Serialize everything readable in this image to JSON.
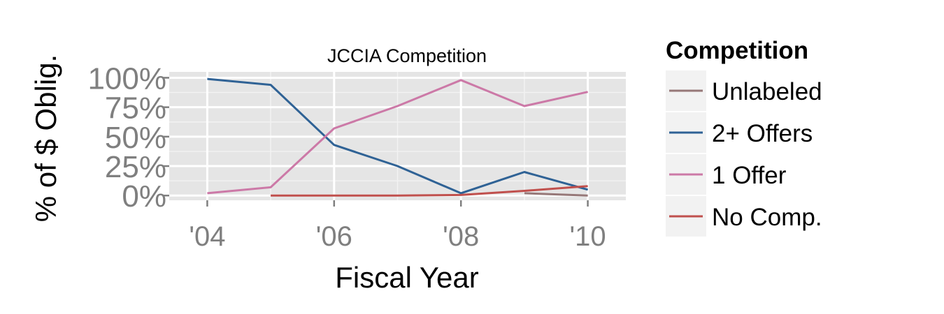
{
  "chart_data": {
    "type": "line",
    "title": "JCCIA Competition",
    "xlabel": "Fiscal Year",
    "ylabel": "% of $ Oblig.",
    "x_ticks": [
      "'04",
      "'06",
      "'08",
      "'10"
    ],
    "x_tick_values": [
      2004,
      2006,
      2008,
      2010
    ],
    "y_ticks": [
      "0%",
      "25%",
      "50%",
      "75%",
      "100%"
    ],
    "y_tick_values": [
      0,
      25,
      50,
      75,
      100
    ],
    "xlim": [
      2003.4,
      2010.6
    ],
    "ylim": [
      -4,
      105
    ],
    "grid": true,
    "background": "#e5e5e5",
    "legend": {
      "title": "Competition",
      "position": "right"
    },
    "series": [
      {
        "name": "Unlabeled",
        "color": "#967878",
        "points": [
          [
            2009,
            2
          ],
          [
            2010,
            0
          ]
        ]
      },
      {
        "name": "2+ Offers",
        "color": "#2f6295",
        "points": [
          [
            2004,
            99
          ],
          [
            2005,
            94
          ],
          [
            2006,
            43
          ],
          [
            2007,
            25
          ],
          [
            2008,
            2
          ],
          [
            2009,
            20
          ],
          [
            2010,
            5
          ]
        ]
      },
      {
        "name": "1 Offer",
        "color": "#cc79a7",
        "points": [
          [
            2004,
            2
          ],
          [
            2005,
            7
          ],
          [
            2006,
            57
          ],
          [
            2007,
            76
          ],
          [
            2008,
            98
          ],
          [
            2009,
            76
          ],
          [
            2010,
            88
          ]
        ]
      },
      {
        "name": "No Comp.",
        "color": "#c0504d",
        "points": [
          [
            2005,
            0
          ],
          [
            2006,
            0
          ],
          [
            2007,
            0
          ],
          [
            2008,
            0.5
          ],
          [
            2009,
            4
          ],
          [
            2010,
            8
          ]
        ]
      }
    ]
  }
}
